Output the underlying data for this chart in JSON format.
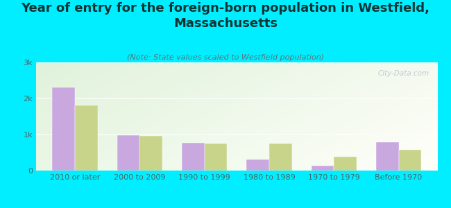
{
  "title": "Year of entry for the foreign-born population in Westfield,\nMassachusetts",
  "subtitle": "(Note: State values scaled to Westfield population)",
  "categories": [
    "2010 or later",
    "2000 to 2009",
    "1990 to 1999",
    "1980 to 1989",
    "1970 to 1979",
    "Before 1970"
  ],
  "westfield_values": [
    2300,
    980,
    760,
    300,
    130,
    790
  ],
  "massachusetts_values": [
    1800,
    960,
    750,
    750,
    390,
    580
  ],
  "westfield_color": "#c9a8e0",
  "massachusetts_color": "#c8d48a",
  "background_color": "#00eeff",
  "ylim": [
    0,
    3000
  ],
  "yticks": [
    0,
    1000,
    2000,
    3000
  ],
  "ytick_labels": [
    "0",
    "1k",
    "2k",
    "3k"
  ],
  "bar_width": 0.35,
  "watermark": "City-Data.com",
  "title_fontsize": 13,
  "subtitle_fontsize": 8,
  "legend_fontsize": 9,
  "tick_fontsize": 8
}
